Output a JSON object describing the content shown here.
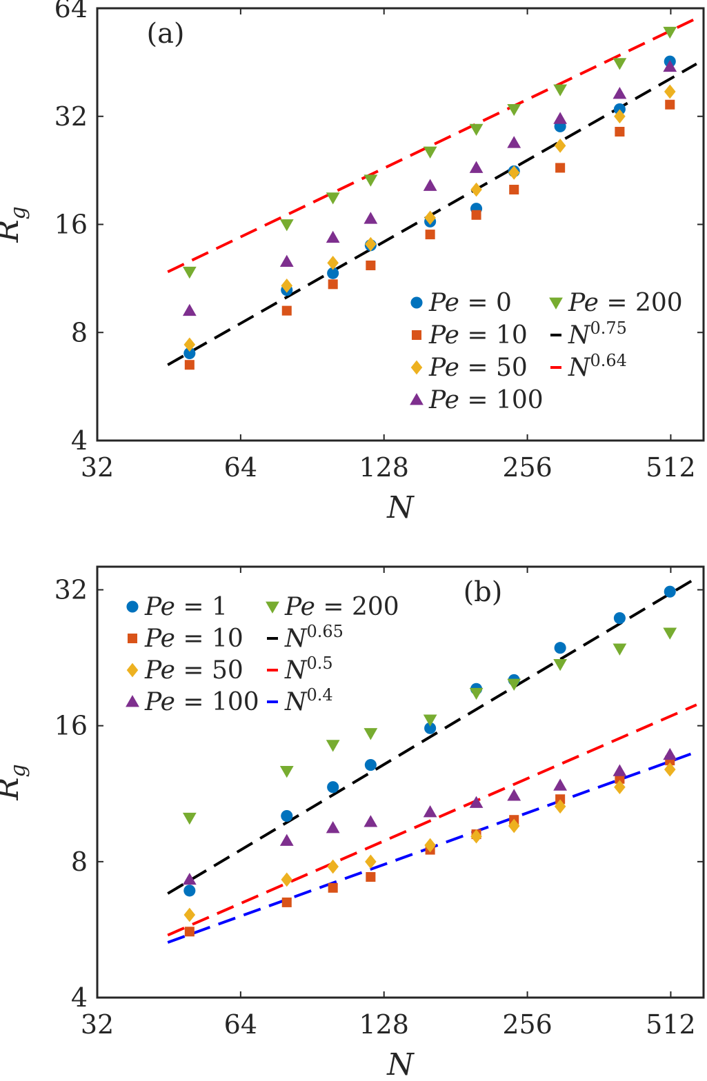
{
  "chart_data": [
    {
      "type": "scatter",
      "panel_label": "(a)",
      "xlabel": "N",
      "ylabel_main": "R",
      "ylabel_sub": "g",
      "x_scale": "log2",
      "y_scale": "log2",
      "xlim": [
        32,
        600
      ],
      "ylim": [
        4,
        64
      ],
      "xticks": [
        32,
        64,
        128,
        256,
        512
      ],
      "yticks": [
        4,
        8,
        16,
        32,
        64
      ],
      "grid": false,
      "legend_placement": "lower-right",
      "series": [
        {
          "name": "Pe = 0",
          "marker": "circle",
          "color": "#0072BD",
          "x": [
            50,
            80,
            100,
            120,
            160,
            200,
            240,
            300,
            400,
            510
          ],
          "y": [
            7.0,
            10.5,
            11.7,
            14.0,
            16.3,
            17.7,
            22.5,
            30.0,
            33.5,
            45.5
          ]
        },
        {
          "name": "Pe = 10",
          "marker": "square",
          "color": "#D95319",
          "x": [
            50,
            80,
            100,
            120,
            160,
            200,
            240,
            300,
            400,
            510
          ],
          "y": [
            6.5,
            9.2,
            10.9,
            12.3,
            15.0,
            17.0,
            20.0,
            23.0,
            29.0,
            34.5
          ]
        },
        {
          "name": "Pe = 50",
          "marker": "diamond",
          "color": "#EDB120",
          "x": [
            50,
            80,
            100,
            120,
            160,
            200,
            240,
            300,
            400,
            510
          ],
          "y": [
            7.4,
            10.8,
            12.5,
            14.1,
            16.7,
            20.0,
            22.3,
            26.5,
            32.0,
            37.5
          ]
        },
        {
          "name": "Pe = 100",
          "marker": "triangle-up",
          "color": "#7E2F8E",
          "x": [
            50,
            80,
            100,
            120,
            160,
            200,
            240,
            300,
            400,
            510
          ],
          "y": [
            9.2,
            12.6,
            14.7,
            16.6,
            20.5,
            23.0,
            27.0,
            31.5,
            37.0,
            44.0
          ]
        },
        {
          "name": "Pe = 200",
          "marker": "triangle-down",
          "color": "#77AC30",
          "x": [
            50,
            80,
            100,
            120,
            160,
            200,
            240,
            300,
            400,
            510
          ],
          "y": [
            11.8,
            16.0,
            19.0,
            21.3,
            25.5,
            29.5,
            33.5,
            38.0,
            45.0,
            55.0
          ]
        },
        {
          "name": "N^0.75",
          "marker": "dashed-line",
          "color": "#000000",
          "x": [
            45,
            580
          ],
          "y": [
            6.5,
            44.8
          ]
        },
        {
          "name": "N^0.64",
          "marker": "dashed-line",
          "color": "#FF0000",
          "x": [
            45,
            580
          ],
          "y": [
            11.8,
            60.0
          ]
        }
      ],
      "legend": {
        "col1": [
          {
            "italic": "Pe",
            "rest": " = 0",
            "color": "#0072BD",
            "marker": "circle"
          },
          {
            "italic": "Pe",
            "rest": " = 10",
            "color": "#D95319",
            "marker": "square"
          },
          {
            "italic": "Pe",
            "rest": " = 50",
            "color": "#EDB120",
            "marker": "diamond"
          },
          {
            "italic": "Pe",
            "rest": " = 100",
            "color": "#7E2F8E",
            "marker": "triangle-up"
          }
        ],
        "col2": [
          {
            "italic": "Pe",
            "rest": " = 200",
            "color": "#77AC30",
            "marker": "triangle-down"
          },
          {
            "italic": "N",
            "sup": "0.75",
            "color": "#000000",
            "marker": "dash"
          },
          {
            "italic": "N",
            "sup": "0.64",
            "color": "#FF0000",
            "marker": "dash"
          }
        ]
      }
    },
    {
      "type": "scatter",
      "panel_label": "(b)",
      "xlabel": "N",
      "ylabel_main": "R",
      "ylabel_sub": "g",
      "x_scale": "log2",
      "y_scale": "log2",
      "xlim": [
        32,
        600
      ],
      "ylim": [
        4,
        36
      ],
      "xticks": [
        32,
        64,
        128,
        256,
        512
      ],
      "yticks": [
        4,
        8,
        16,
        32
      ],
      "grid": false,
      "legend_placement": "top-left",
      "series": [
        {
          "name": "Pe = 1",
          "marker": "circle",
          "color": "#0072BD",
          "x": [
            50,
            80,
            100,
            120,
            160,
            200,
            240,
            300,
            400,
            510
          ],
          "y": [
            6.9,
            10.1,
            11.7,
            13.1,
            15.8,
            19.3,
            20.2,
            23.8,
            27.7,
            31.7
          ]
        },
        {
          "name": "Pe = 10",
          "marker": "square",
          "color": "#D95319",
          "x": [
            50,
            80,
            100,
            120,
            160,
            200,
            240,
            300,
            400,
            510
          ],
          "y": [
            5.6,
            6.5,
            7.0,
            7.4,
            8.5,
            9.2,
            9.9,
            11.0,
            12.2,
            13.4
          ]
        },
        {
          "name": "Pe = 50",
          "marker": "diamond",
          "color": "#EDB120",
          "x": [
            50,
            80,
            100,
            120,
            160,
            200,
            240,
            300,
            400,
            510
          ],
          "y": [
            6.1,
            7.3,
            7.8,
            8.0,
            8.7,
            9.1,
            9.6,
            10.6,
            11.7,
            12.8
          ]
        },
        {
          "name": "Pe = 100",
          "marker": "triangle-up",
          "color": "#7E2F8E",
          "x": [
            50,
            80,
            100,
            120,
            160,
            200,
            240,
            300,
            400,
            510
          ],
          "y": [
            7.3,
            8.9,
            9.5,
            9.8,
            10.3,
            10.8,
            11.2,
            11.8,
            12.7,
            13.8
          ]
        },
        {
          "name": "Pe = 200",
          "marker": "triangle-down",
          "color": "#77AC30",
          "x": [
            50,
            80,
            100,
            120,
            160,
            200,
            240,
            300,
            400,
            510
          ],
          "y": [
            10.0,
            12.7,
            14.5,
            15.4,
            16.5,
            18.9,
            19.8,
            21.9,
            23.7,
            25.7
          ]
        },
        {
          "name": "N^0.65",
          "marker": "dashed-line",
          "color": "#000000",
          "x": [
            45,
            580
          ],
          "y": [
            6.8,
            34.0
          ]
        },
        {
          "name": "N^0.5",
          "marker": "dashed-line",
          "color": "#FF0000",
          "x": [
            45,
            580
          ],
          "y": [
            5.5,
            17.8
          ]
        },
        {
          "name": "N^0.4",
          "marker": "dashed-line",
          "color": "#0000FF",
          "x": [
            45,
            580
          ],
          "y": [
            5.3,
            14.0
          ]
        }
      ],
      "legend": {
        "col1": [
          {
            "italic": "Pe",
            "rest": " = 1",
            "color": "#0072BD",
            "marker": "circle"
          },
          {
            "italic": "Pe",
            "rest": " = 10",
            "color": "#D95319",
            "marker": "square"
          },
          {
            "italic": "Pe",
            "rest": " = 50",
            "color": "#EDB120",
            "marker": "diamond"
          },
          {
            "italic": "Pe",
            "rest": " = 100",
            "color": "#7E2F8E",
            "marker": "triangle-up"
          }
        ],
        "col2": [
          {
            "italic": "Pe",
            "rest": " = 200",
            "color": "#77AC30",
            "marker": "triangle-down"
          },
          {
            "italic": "N",
            "sup": "0.65",
            "color": "#000000",
            "marker": "dash"
          },
          {
            "italic": "N",
            "sup": "0.5",
            "color": "#FF0000",
            "marker": "dash"
          },
          {
            "italic": "N",
            "sup": "0.4",
            "color": "#0000FF",
            "marker": "dash"
          }
        ]
      }
    }
  ]
}
